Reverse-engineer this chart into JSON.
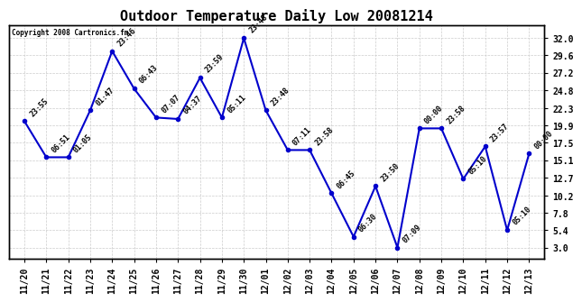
{
  "title": "Outdoor Temperature Daily Low 20081214",
  "copyright": "Copyright 2008 Cartronics.fm",
  "x_labels": [
    "11/20",
    "11/21",
    "11/22",
    "11/23",
    "11/24",
    "11/25",
    "11/26",
    "11/27",
    "11/28",
    "11/29",
    "11/30",
    "12/01",
    "12/02",
    "12/03",
    "12/04",
    "12/05",
    "12/06",
    "12/07",
    "12/08",
    "12/09",
    "12/10",
    "12/11",
    "12/12",
    "12/13"
  ],
  "y_values": [
    20.5,
    15.5,
    15.5,
    22.0,
    30.2,
    25.0,
    21.0,
    20.8,
    26.5,
    21.0,
    32.0,
    22.0,
    16.5,
    16.5,
    10.5,
    4.5,
    11.5,
    3.0,
    19.5,
    19.5,
    12.5,
    17.0,
    5.4,
    16.0
  ],
  "point_labels": [
    "23:55",
    "06:51",
    "01:05",
    "01:47",
    "23:46",
    "06:43",
    "07:07",
    "04:37",
    "23:59",
    "05:11",
    "23:48",
    "23:48",
    "07:11",
    "23:58",
    "06:45",
    "06:30",
    "23:50",
    "07:09",
    "00:00",
    "23:58",
    "05:10",
    "23:57",
    "05:10",
    "00:00"
  ],
  "y_ticks": [
    3.0,
    5.4,
    7.8,
    10.2,
    12.7,
    15.1,
    17.5,
    19.9,
    22.3,
    24.8,
    27.2,
    29.6,
    32.0
  ],
  "line_color": "#0000CC",
  "marker_color": "#0000CC",
  "bg_color": "#FFFFFF",
  "plot_bg_color": "#FFFFFF",
  "grid_color": "#CCCCCC",
  "title_fontsize": 11,
  "tick_fontsize": 7,
  "annotation_fontsize": 6
}
